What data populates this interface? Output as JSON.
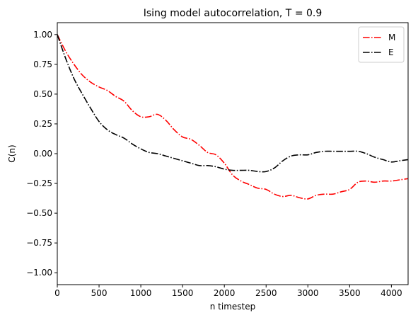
{
  "chart_data": {
    "type": "line",
    "title": "Ising model autocorrelation, T = 0.9",
    "xlabel": "n timestep",
    "ylabel": "C(n)",
    "xlim": [
      0,
      4200
    ],
    "ylim": [
      -1.1,
      1.1
    ],
    "xticks": [
      0,
      500,
      1000,
      1500,
      2000,
      2500,
      3000,
      3500,
      4000
    ],
    "xtick_labels": [
      "0",
      "500",
      "1000",
      "1500",
      "2000",
      "2500",
      "3000",
      "3500",
      "4000"
    ],
    "yticks": [
      1.0,
      0.75,
      0.5,
      0.25,
      0.0,
      -0.25,
      -0.5,
      -0.75,
      -1.0
    ],
    "ytick_labels": [
      "1.00",
      "0.75",
      "0.50",
      "0.25",
      "0.00",
      "−0.25",
      "−0.50",
      "−0.75",
      "−1.00"
    ],
    "grid": false,
    "legend": "top-right",
    "series": [
      {
        "name": "M",
        "color": "#ff0000",
        "linestyle": "dash-dot",
        "x": [
          0,
          100,
          200,
          300,
          400,
          500,
          600,
          700,
          800,
          900,
          1000,
          1100,
          1200,
          1300,
          1400,
          1500,
          1600,
          1700,
          1800,
          1900,
          2000,
          2100,
          2200,
          2300,
          2400,
          2500,
          2600,
          2700,
          2800,
          2900,
          3000,
          3100,
          3200,
          3300,
          3400,
          3500,
          3600,
          3700,
          3800,
          3900,
          4000,
          4100,
          4200
        ],
        "y": [
          1.0,
          0.86,
          0.75,
          0.66,
          0.6,
          0.56,
          0.53,
          0.48,
          0.44,
          0.36,
          0.31,
          0.31,
          0.33,
          0.28,
          0.2,
          0.14,
          0.12,
          0.07,
          0.01,
          -0.01,
          -0.08,
          -0.18,
          -0.23,
          -0.26,
          -0.29,
          -0.3,
          -0.34,
          -0.36,
          -0.35,
          -0.37,
          -0.38,
          -0.35,
          -0.34,
          -0.34,
          -0.32,
          -0.3,
          -0.24,
          -0.23,
          -0.24,
          -0.23,
          -0.23,
          -0.22,
          -0.21
        ]
      },
      {
        "name": "E",
        "color": "#000000",
        "linestyle": "dash-dot",
        "x": [
          0,
          100,
          200,
          300,
          400,
          500,
          600,
          700,
          800,
          900,
          1000,
          1100,
          1200,
          1300,
          1400,
          1500,
          1600,
          1700,
          1800,
          1900,
          2000,
          2100,
          2200,
          2300,
          2400,
          2500,
          2600,
          2700,
          2800,
          2900,
          3000,
          3100,
          3200,
          3300,
          3400,
          3500,
          3600,
          3700,
          3800,
          3900,
          4000,
          4100,
          4200
        ],
        "y": [
          1.0,
          0.8,
          0.63,
          0.5,
          0.38,
          0.27,
          0.2,
          0.16,
          0.13,
          0.08,
          0.04,
          0.01,
          0.0,
          -0.02,
          -0.04,
          -0.06,
          -0.08,
          -0.1,
          -0.1,
          -0.11,
          -0.13,
          -0.14,
          -0.14,
          -0.14,
          -0.15,
          -0.15,
          -0.12,
          -0.06,
          -0.02,
          -0.01,
          -0.01,
          0.01,
          0.02,
          0.02,
          0.02,
          0.02,
          0.02,
          0.0,
          -0.03,
          -0.05,
          -0.07,
          -0.06,
          -0.05
        ]
      }
    ]
  }
}
